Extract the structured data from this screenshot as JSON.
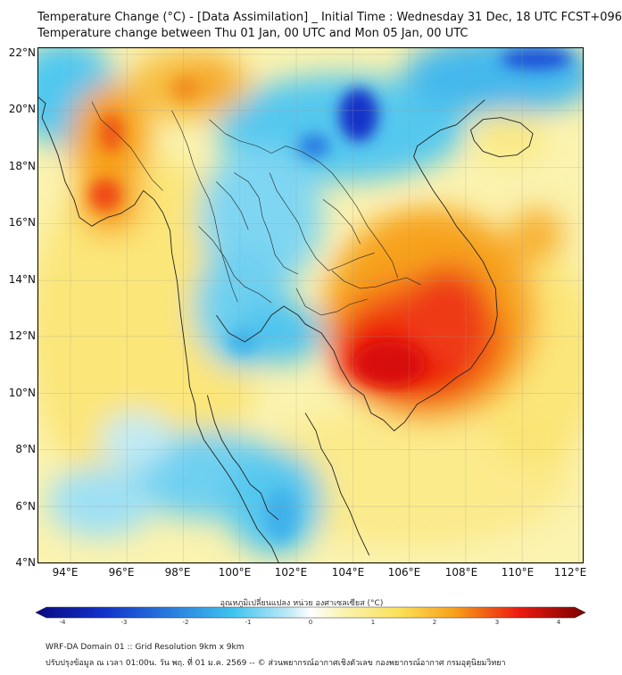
{
  "title_line1": "Temperature Change (°C) - [Data Assimilation] _ Initial Time : Wednesday 31 Dec, 18 UTC FCST+096",
  "title_line2": "Temperature change between Thu 01 Jan, 00 UTC and Mon 05 Jan, 00 UTC",
  "lat_ticks": [
    "22°N",
    "20°N",
    "18°N",
    "16°N",
    "14°N",
    "12°N",
    "10°N",
    "8°N",
    "6°N",
    "4°N"
  ],
  "lon_ticks": [
    "94°E",
    "96°E",
    "98°E",
    "100°E",
    "102°E",
    "104°E",
    "106°E",
    "108°E",
    "110°E",
    "112°E"
  ],
  "colorbar": {
    "label": "อุณหภูมิเปลี่ยนแปลง หน่วย องศาเซลเซียส (°C)",
    "ticks": [
      "-4",
      "-3",
      "-2",
      "-1",
      "0",
      "1",
      "2",
      "3",
      "4"
    ],
    "min": -4,
    "max": 4
  },
  "footer_line1": "WRF-DA Domain 01 :: Grid Resolution 9km x 9km",
  "footer_line2": "ปรับปรุงข้อมูล ณ เวลา 01:00น. วัน พฤ. ที่ 01 ม.ค. 2569 -- © ส่วนพยากรณ์อากาศเชิงตัวเลข กองพยากรณ์อากาศ กรมอุตุนิยมวิทยา",
  "colors": {
    "deep_blue": "#1230c8",
    "blue": "#2a7fe0",
    "cyan": "#3fc4ee",
    "light_cyan": "#bfeaf6",
    "light_yellow": "#fbf3b0",
    "yellow": "#fbe15a",
    "orange": "#f7a21a",
    "red": "#ec1a10",
    "dark_red": "#7a0000"
  }
}
